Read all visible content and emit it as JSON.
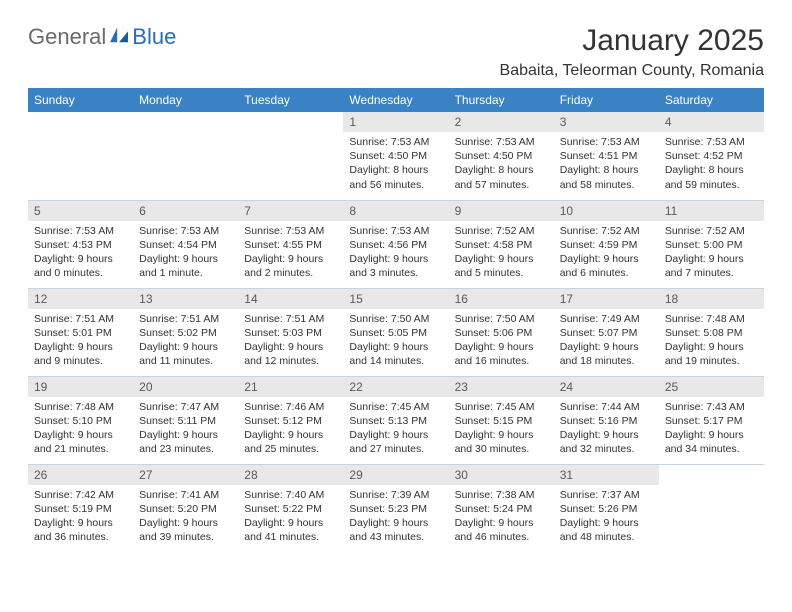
{
  "logo": {
    "part1": "General",
    "part2": "Blue"
  },
  "title": "January 2025",
  "location": "Babaita, Teleorman County, Romania",
  "headers": {
    "bg": "#3a82c4",
    "fg": "#ffffff",
    "days": [
      "Sunday",
      "Monday",
      "Tuesday",
      "Wednesday",
      "Thursday",
      "Friday",
      "Saturday"
    ]
  },
  "daynum_bg": "#e8e8e8",
  "divider": "#c5d4e3",
  "weeks": [
    [
      null,
      null,
      null,
      {
        "n": "1",
        "sr": "7:53 AM",
        "ss": "4:50 PM",
        "dl": "8 hours and 56 minutes."
      },
      {
        "n": "2",
        "sr": "7:53 AM",
        "ss": "4:50 PM",
        "dl": "8 hours and 57 minutes."
      },
      {
        "n": "3",
        "sr": "7:53 AM",
        "ss": "4:51 PM",
        "dl": "8 hours and 58 minutes."
      },
      {
        "n": "4",
        "sr": "7:53 AM",
        "ss": "4:52 PM",
        "dl": "8 hours and 59 minutes."
      }
    ],
    [
      {
        "n": "5",
        "sr": "7:53 AM",
        "ss": "4:53 PM",
        "dl": "9 hours and 0 minutes."
      },
      {
        "n": "6",
        "sr": "7:53 AM",
        "ss": "4:54 PM",
        "dl": "9 hours and 1 minute."
      },
      {
        "n": "7",
        "sr": "7:53 AM",
        "ss": "4:55 PM",
        "dl": "9 hours and 2 minutes."
      },
      {
        "n": "8",
        "sr": "7:53 AM",
        "ss": "4:56 PM",
        "dl": "9 hours and 3 minutes."
      },
      {
        "n": "9",
        "sr": "7:52 AM",
        "ss": "4:58 PM",
        "dl": "9 hours and 5 minutes."
      },
      {
        "n": "10",
        "sr": "7:52 AM",
        "ss": "4:59 PM",
        "dl": "9 hours and 6 minutes."
      },
      {
        "n": "11",
        "sr": "7:52 AM",
        "ss": "5:00 PM",
        "dl": "9 hours and 7 minutes."
      }
    ],
    [
      {
        "n": "12",
        "sr": "7:51 AM",
        "ss": "5:01 PM",
        "dl": "9 hours and 9 minutes."
      },
      {
        "n": "13",
        "sr": "7:51 AM",
        "ss": "5:02 PM",
        "dl": "9 hours and 11 minutes."
      },
      {
        "n": "14",
        "sr": "7:51 AM",
        "ss": "5:03 PM",
        "dl": "9 hours and 12 minutes."
      },
      {
        "n": "15",
        "sr": "7:50 AM",
        "ss": "5:05 PM",
        "dl": "9 hours and 14 minutes."
      },
      {
        "n": "16",
        "sr": "7:50 AM",
        "ss": "5:06 PM",
        "dl": "9 hours and 16 minutes."
      },
      {
        "n": "17",
        "sr": "7:49 AM",
        "ss": "5:07 PM",
        "dl": "9 hours and 18 minutes."
      },
      {
        "n": "18",
        "sr": "7:48 AM",
        "ss": "5:08 PM",
        "dl": "9 hours and 19 minutes."
      }
    ],
    [
      {
        "n": "19",
        "sr": "7:48 AM",
        "ss": "5:10 PM",
        "dl": "9 hours and 21 minutes."
      },
      {
        "n": "20",
        "sr": "7:47 AM",
        "ss": "5:11 PM",
        "dl": "9 hours and 23 minutes."
      },
      {
        "n": "21",
        "sr": "7:46 AM",
        "ss": "5:12 PM",
        "dl": "9 hours and 25 minutes."
      },
      {
        "n": "22",
        "sr": "7:45 AM",
        "ss": "5:13 PM",
        "dl": "9 hours and 27 minutes."
      },
      {
        "n": "23",
        "sr": "7:45 AM",
        "ss": "5:15 PM",
        "dl": "9 hours and 30 minutes."
      },
      {
        "n": "24",
        "sr": "7:44 AM",
        "ss": "5:16 PM",
        "dl": "9 hours and 32 minutes."
      },
      {
        "n": "25",
        "sr": "7:43 AM",
        "ss": "5:17 PM",
        "dl": "9 hours and 34 minutes."
      }
    ],
    [
      {
        "n": "26",
        "sr": "7:42 AM",
        "ss": "5:19 PM",
        "dl": "9 hours and 36 minutes."
      },
      {
        "n": "27",
        "sr": "7:41 AM",
        "ss": "5:20 PM",
        "dl": "9 hours and 39 minutes."
      },
      {
        "n": "28",
        "sr": "7:40 AM",
        "ss": "5:22 PM",
        "dl": "9 hours and 41 minutes."
      },
      {
        "n": "29",
        "sr": "7:39 AM",
        "ss": "5:23 PM",
        "dl": "9 hours and 43 minutes."
      },
      {
        "n": "30",
        "sr": "7:38 AM",
        "ss": "5:24 PM",
        "dl": "9 hours and 46 minutes."
      },
      {
        "n": "31",
        "sr": "7:37 AM",
        "ss": "5:26 PM",
        "dl": "9 hours and 48 minutes."
      },
      null
    ]
  ],
  "labels": {
    "sunrise": "Sunrise:",
    "sunset": "Sunset:",
    "daylight": "Daylight:"
  }
}
